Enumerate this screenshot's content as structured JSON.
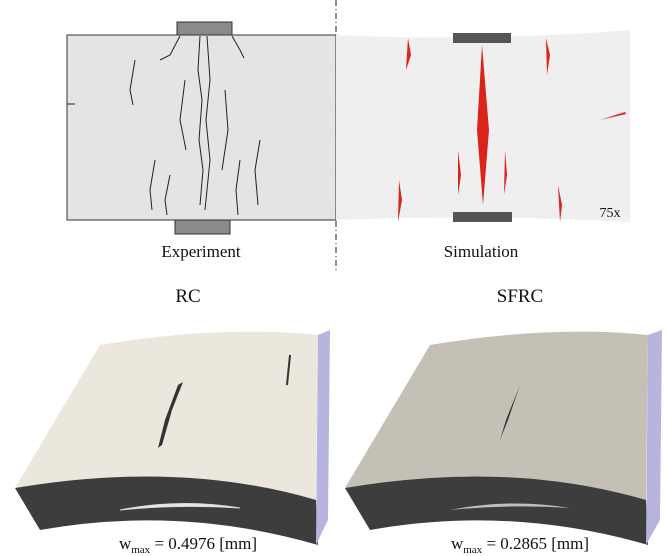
{
  "top": {
    "experiment_label": "Experiment",
    "simulation_label": "Simulation",
    "scale_label": "75x"
  },
  "bottom": {
    "panels": [
      {
        "title": "RC",
        "width": {
          "symbol": "w",
          "subscript": "max",
          "text": " = 0.4976 [mm]"
        }
      },
      {
        "title": "SFRC",
        "width": {
          "symbol": "w",
          "subscript": "max",
          "text": " = 0.2865 [mm]"
        }
      }
    ]
  }
}
